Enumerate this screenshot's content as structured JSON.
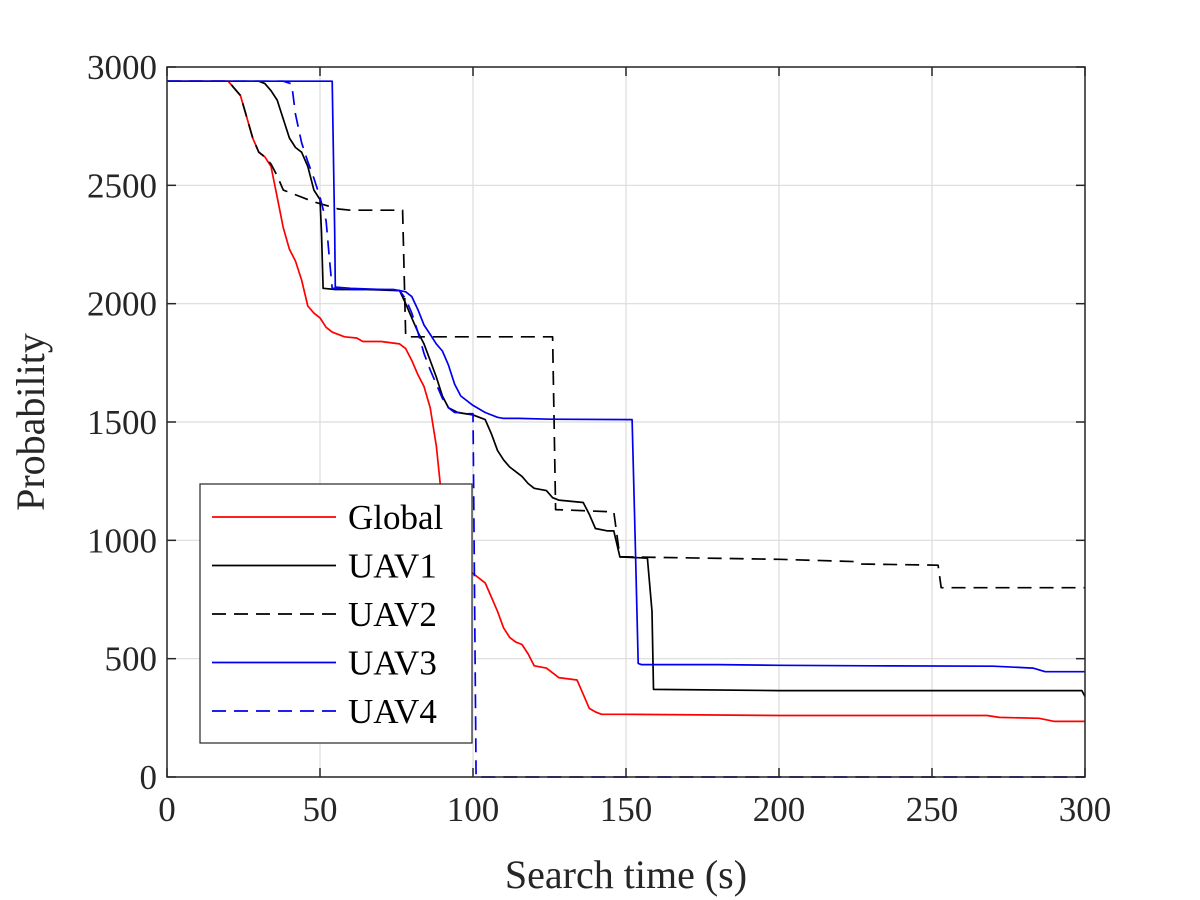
{
  "chart_data": {
    "type": "line",
    "title": "",
    "xlabel": "Search time (s)",
    "ylabel": "Probability",
    "xlim": [
      0,
      300
    ],
    "ylim": [
      0,
      3000
    ],
    "xticks": [
      0,
      50,
      100,
      150,
      200,
      250,
      300
    ],
    "yticks": [
      0,
      500,
      1000,
      1500,
      2000,
      2500,
      3000
    ],
    "grid": true,
    "legend_position": "bottom-left",
    "series": [
      {
        "name": "Global",
        "color": "#ff0000",
        "dash": "solid",
        "x": [
          0,
          20,
          24,
          26,
          28,
          30,
          32,
          34,
          36,
          38,
          40,
          42,
          44,
          46,
          48,
          50,
          52,
          54,
          58,
          62,
          64,
          70,
          76,
          78,
          80,
          82,
          84,
          86,
          88,
          90,
          92,
          94,
          96,
          98,
          100,
          102,
          104,
          106,
          108,
          110,
          112,
          114,
          116,
          118,
          120,
          124,
          128,
          134,
          136,
          138,
          140,
          142,
          150,
          200,
          268,
          272,
          285,
          290,
          300
        ],
        "y": [
          2940,
          2940,
          2880,
          2790,
          2700,
          2640,
          2620,
          2580,
          2450,
          2320,
          2230,
          2180,
          2100,
          1990,
          1960,
          1940,
          1900,
          1880,
          1860,
          1855,
          1840,
          1840,
          1830,
          1810,
          1760,
          1700,
          1650,
          1560,
          1400,
          1150,
          1050,
          980,
          920,
          880,
          860,
          840,
          820,
          760,
          700,
          630,
          590,
          570,
          560,
          520,
          470,
          460,
          420,
          410,
          350,
          290,
          275,
          265,
          265,
          260,
          260,
          252,
          248,
          235,
          235
        ]
      },
      {
        "name": "UAV1",
        "color": "#000000",
        "dash": "solid",
        "x": [
          0,
          30,
          32,
          34,
          36,
          38,
          40,
          42,
          44,
          46,
          48,
          50,
          50.5,
          51,
          55,
          65,
          76,
          78,
          80,
          82,
          84,
          86,
          88,
          90,
          92,
          95,
          100,
          104,
          106,
          108,
          110,
          112,
          114,
          116,
          118,
          120,
          124,
          126,
          128,
          136,
          138,
          140,
          144,
          146,
          148,
          157,
          158.5,
          159,
          200,
          299,
          300
        ],
        "y": [
          2940,
          2940,
          2930,
          2900,
          2860,
          2780,
          2700,
          2660,
          2640,
          2580,
          2480,
          2440,
          2300,
          2065,
          2060,
          2060,
          2055,
          2000,
          1940,
          1880,
          1830,
          1760,
          1690,
          1610,
          1560,
          1540,
          1530,
          1510,
          1450,
          1380,
          1340,
          1310,
          1290,
          1270,
          1240,
          1220,
          1210,
          1180,
          1170,
          1160,
          1110,
          1050,
          1040,
          1040,
          930,
          925,
          700,
          370,
          365,
          365,
          340
        ]
      },
      {
        "name": "UAV2",
        "color": "#000000",
        "dash": "dashed",
        "x": [
          0,
          20,
          24,
          26,
          28,
          30,
          32,
          34,
          36,
          38,
          40,
          48,
          56,
          60,
          77,
          78,
          126,
          126.5,
          127,
          146,
          148,
          150,
          200,
          225,
          227,
          252,
          253,
          300
        ],
        "y": [
          2940,
          2940,
          2880,
          2790,
          2700,
          2640,
          2620,
          2590,
          2540,
          2480,
          2470,
          2430,
          2400,
          2395,
          2395,
          1860,
          1860,
          1500,
          1130,
          1120,
          930,
          930,
          920,
          910,
          900,
          895,
          800,
          800
        ]
      },
      {
        "name": "UAV3",
        "color": "#0000ee",
        "dash": "solid",
        "x": [
          0,
          54,
          54.8,
          55,
          60,
          70,
          74,
          76,
          78,
          80,
          82,
          84,
          86,
          88,
          90,
          92,
          94,
          96,
          100,
          104,
          108,
          110,
          115,
          125,
          152,
          153,
          154,
          155,
          180,
          200,
          230,
          270,
          283,
          287,
          300
        ],
        "y": [
          2940,
          2940,
          2300,
          2070,
          2065,
          2060,
          2060,
          2055,
          2050,
          2030,
          1975,
          1910,
          1870,
          1830,
          1800,
          1740,
          1660,
          1610,
          1570,
          1540,
          1520,
          1515,
          1515,
          1512,
          1510,
          1000,
          480,
          475,
          475,
          472,
          470,
          468,
          460,
          445,
          445
        ]
      },
      {
        "name": "UAV4",
        "color": "#0000ee",
        "dash": "dashed",
        "x": [
          0,
          38,
          40.5,
          41,
          42,
          44,
          46,
          48,
          50,
          52,
          53,
          54,
          56,
          60,
          70,
          76,
          78,
          80,
          82,
          84,
          86,
          88,
          90,
          92,
          94,
          96,
          98,
          100,
          100.5,
          101,
          300
        ],
        "y": [
          2940,
          2940,
          2930,
          2900,
          2800,
          2680,
          2600,
          2530,
          2450,
          2350,
          2200,
          2065,
          2065,
          2060,
          2060,
          2055,
          2020,
          1960,
          1880,
          1790,
          1720,
          1660,
          1600,
          1560,
          1540,
          1540,
          1535,
          1535,
          800,
          0,
          0
        ]
      }
    ]
  }
}
